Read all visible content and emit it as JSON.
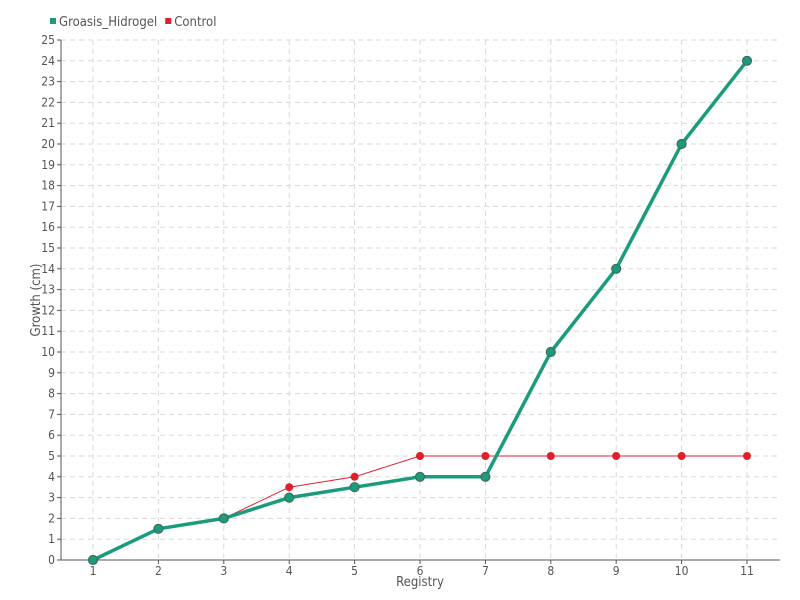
{
  "chart_data": {
    "type": "line",
    "title": "",
    "xlabel": "Registry",
    "ylabel": "Growth (cm)",
    "categories": [
      "1",
      "2",
      "3",
      "4",
      "5",
      "6",
      "7",
      "8",
      "9",
      "10",
      "11"
    ],
    "ylim": [
      0,
      25
    ],
    "yticks": [
      "0",
      "1",
      "2",
      "3",
      "4",
      "5",
      "6",
      "7",
      "8",
      "9",
      "10",
      "11",
      "12",
      "13",
      "14",
      "15",
      "16",
      "17",
      "18",
      "19",
      "20",
      "21",
      "22",
      "23",
      "24",
      "25"
    ],
    "grid": true,
    "legend_position": "top-left",
    "series": [
      {
        "name": "Groasis_Hidrogel",
        "color": "#1a9c7c",
        "values": [
          0,
          1.5,
          2,
          3,
          3.5,
          4,
          4,
          10,
          14,
          20,
          24
        ]
      },
      {
        "name": "Control",
        "color": "#e01f2c",
        "values": [
          0,
          1.5,
          2,
          3.5,
          4,
          5,
          5,
          5,
          5,
          5,
          5
        ]
      }
    ]
  }
}
